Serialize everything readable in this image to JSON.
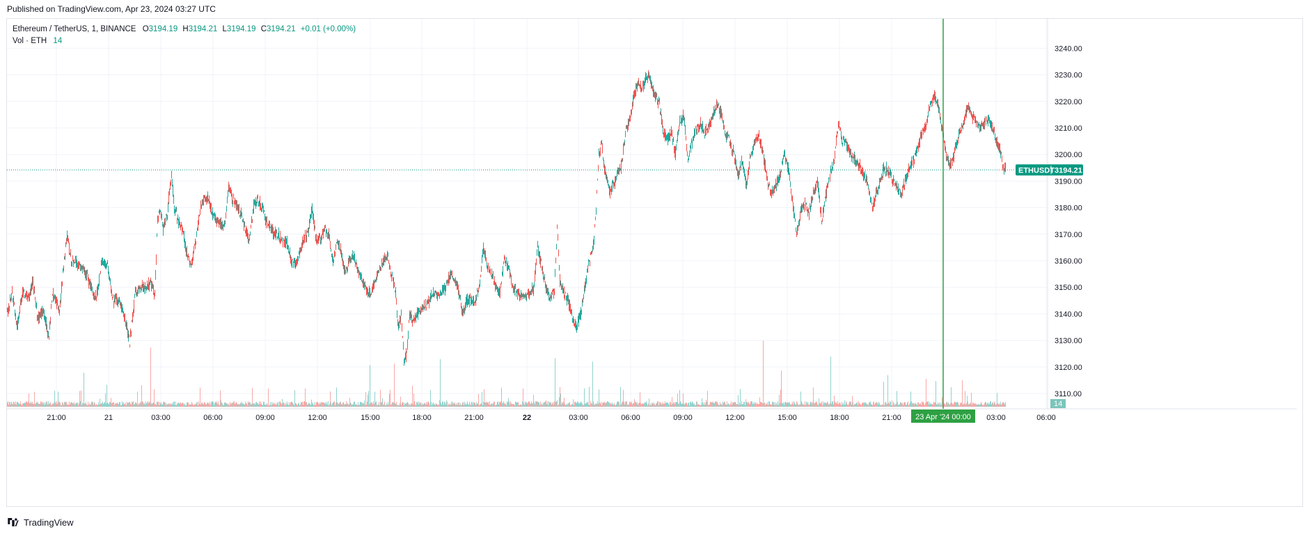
{
  "header": {
    "published": "Published on TradingView.com, Apr 23, 2024 03:27 UTC"
  },
  "legend": {
    "symbol": "Ethereum / TetherUS, 1, BINANCE",
    "o_label": "O",
    "o_value": "3194.19",
    "h_label": "H",
    "h_value": "3194.21",
    "l_label": "L",
    "l_value": "3194.19",
    "c_label": "C",
    "c_value": "3194.21",
    "change": "+0.01 (+0.00%)",
    "vol_label": "Vol · ETH",
    "vol_value": "14"
  },
  "price_tag": {
    "symbol": "ETHUSDT",
    "price": "3194.21"
  },
  "volume_tag": "14",
  "crosshair_label": "23 Apr '24   00:00",
  "footer": {
    "brand": "TradingView"
  },
  "colors": {
    "up": "#26a69a",
    "down": "#ef5350",
    "crosshair": "#2ea043",
    "price_line": "#089981"
  },
  "chart_data": {
    "type": "candlestick",
    "interval": "1 minute",
    "y_axis_ticks": [
      "3110.00",
      "3120.00",
      "3130.00",
      "3140.00",
      "3150.00",
      "3160.00",
      "3170.00",
      "3180.00",
      "3190.00",
      "3200.00",
      "3210.00",
      "3220.00",
      "3230.00",
      "3240.00"
    ],
    "ylim": [
      3103.7,
      3250.6
    ],
    "x_axis_ticks": [
      "21:00",
      "21",
      "03:00",
      "06:00",
      "09:00",
      "12:00",
      "15:00",
      "18:00",
      "21:00",
      "22",
      "03:00",
      "06:00",
      "09:00",
      "12:00",
      "15:00",
      "18:00",
      "21:00",
      "03:00",
      "06:00"
    ],
    "x_axis_ticks_bold": [
      "22"
    ],
    "current_price": 3194.21,
    "crosshair_time": "23 Apr '24 00:00",
    "grid": true,
    "price_path": [
      [
        0,
        3140
      ],
      [
        7,
        3148
      ],
      [
        14,
        3135
      ],
      [
        22,
        3148
      ],
      [
        30,
        3146
      ],
      [
        37,
        3152
      ],
      [
        44,
        3138
      ],
      [
        52,
        3142
      ],
      [
        60,
        3131
      ],
      [
        65,
        3148
      ],
      [
        70,
        3145
      ],
      [
        75,
        3140
      ],
      [
        80,
        3155
      ],
      [
        86,
        3170
      ],
      [
        92,
        3160
      ],
      [
        98,
        3160
      ],
      [
        106,
        3157
      ],
      [
        114,
        3155
      ],
      [
        122,
        3148
      ],
      [
        128,
        3146
      ],
      [
        136,
        3160
      ],
      [
        144,
        3158
      ],
      [
        152,
        3145
      ],
      [
        160,
        3145
      ],
      [
        168,
        3140
      ],
      [
        176,
        3129
      ],
      [
        184,
        3148
      ],
      [
        192,
        3150
      ],
      [
        200,
        3150
      ],
      [
        206,
        3152
      ],
      [
        212,
        3147
      ],
      [
        216,
        3175
      ],
      [
        220,
        3180
      ],
      [
        224,
        3172
      ],
      [
        230,
        3178
      ],
      [
        236,
        3193
      ],
      [
        240,
        3180
      ],
      [
        246,
        3175
      ],
      [
        252,
        3172
      ],
      [
        258,
        3163
      ],
      [
        264,
        3158
      ],
      [
        270,
        3166
      ],
      [
        276,
        3178
      ],
      [
        282,
        3183
      ],
      [
        288,
        3184
      ],
      [
        294,
        3178
      ],
      [
        300,
        3175
      ],
      [
        306,
        3174
      ],
      [
        312,
        3173
      ],
      [
        318,
        3188
      ],
      [
        324,
        3183
      ],
      [
        330,
        3180
      ],
      [
        336,
        3177
      ],
      [
        342,
        3172
      ],
      [
        348,
        3168
      ],
      [
        354,
        3180
      ],
      [
        360,
        3183
      ],
      [
        366,
        3180
      ],
      [
        372,
        3175
      ],
      [
        378,
        3173
      ],
      [
        384,
        3170
      ],
      [
        390,
        3170
      ],
      [
        396,
        3167
      ],
      [
        402,
        3167
      ],
      [
        408,
        3160
      ],
      [
        414,
        3159
      ],
      [
        420,
        3163
      ],
      [
        426,
        3168
      ],
      [
        432,
        3170
      ],
      [
        438,
        3180
      ],
      [
        444,
        3168
      ],
      [
        450,
        3168
      ],
      [
        456,
        3172
      ],
      [
        462,
        3170
      ],
      [
        468,
        3160
      ],
      [
        474,
        3167
      ],
      [
        480,
        3163
      ],
      [
        486,
        3155
      ],
      [
        492,
        3160
      ],
      [
        498,
        3162
      ],
      [
        504,
        3155
      ],
      [
        510,
        3153
      ],
      [
        516,
        3149
      ],
      [
        522,
        3148
      ],
      [
        528,
        3152
      ],
      [
        534,
        3157
      ],
      [
        540,
        3160
      ],
      [
        546,
        3162
      ],
      [
        552,
        3155
      ],
      [
        558,
        3148
      ],
      [
        562,
        3135
      ],
      [
        566,
        3140
      ],
      [
        570,
        3122
      ],
      [
        574,
        3125
      ],
      [
        578,
        3140
      ],
      [
        582,
        3138
      ],
      [
        588,
        3140
      ],
      [
        594,
        3142
      ],
      [
        600,
        3143
      ],
      [
        606,
        3145
      ],
      [
        612,
        3148
      ],
      [
        618,
        3147
      ],
      [
        624,
        3148
      ],
      [
        630,
        3150
      ],
      [
        636,
        3155
      ],
      [
        642,
        3153
      ],
      [
        648,
        3150
      ],
      [
        654,
        3140
      ],
      [
        660,
        3145
      ],
      [
        666,
        3145
      ],
      [
        672,
        3145
      ],
      [
        678,
        3150
      ],
      [
        684,
        3165
      ],
      [
        690,
        3158
      ],
      [
        696,
        3155
      ],
      [
        702,
        3150
      ],
      [
        708,
        3148
      ],
      [
        714,
        3160
      ],
      [
        720,
        3158
      ],
      [
        726,
        3150
      ],
      [
        732,
        3148
      ],
      [
        738,
        3147
      ],
      [
        744,
        3146
      ],
      [
        750,
        3148
      ],
      [
        756,
        3149
      ],
      [
        762,
        3165
      ],
      [
        768,
        3158
      ],
      [
        774,
        3150
      ],
      [
        780,
        3145
      ],
      [
        786,
        3149
      ],
      [
        790,
        3172
      ],
      [
        794,
        3152
      ],
      [
        800,
        3148
      ],
      [
        806,
        3145
      ],
      [
        812,
        3138
      ],
      [
        818,
        3135
      ],
      [
        824,
        3140
      ],
      [
        830,
        3150
      ],
      [
        836,
        3160
      ],
      [
        842,
        3165
      ],
      [
        846,
        3180
      ],
      [
        850,
        3200
      ],
      [
        854,
        3205
      ],
      [
        858,
        3195
      ],
      [
        862,
        3190
      ],
      [
        866,
        3186
      ],
      [
        870,
        3188
      ],
      [
        876,
        3192
      ],
      [
        882,
        3195
      ],
      [
        888,
        3208
      ],
      [
        894,
        3212
      ],
      [
        900,
        3222
      ],
      [
        906,
        3227
      ],
      [
        912,
        3224
      ],
      [
        918,
        3230
      ],
      [
        924,
        3228
      ],
      [
        930,
        3222
      ],
      [
        936,
        3220
      ],
      [
        942,
        3210
      ],
      [
        948,
        3205
      ],
      [
        954,
        3208
      ],
      [
        960,
        3200
      ],
      [
        966,
        3213
      ],
      [
        972,
        3215
      ],
      [
        978,
        3198
      ],
      [
        984,
        3205
      ],
      [
        990,
        3210
      ],
      [
        996,
        3212
      ],
      [
        1002,
        3208
      ],
      [
        1008,
        3210
      ],
      [
        1014,
        3215
      ],
      [
        1020,
        3219
      ],
      [
        1026,
        3215
      ],
      [
        1032,
        3208
      ],
      [
        1038,
        3205
      ],
      [
        1044,
        3200
      ],
      [
        1050,
        3192
      ],
      [
        1056,
        3198
      ],
      [
        1062,
        3188
      ],
      [
        1068,
        3200
      ],
      [
        1074,
        3205
      ],
      [
        1080,
        3207
      ],
      [
        1086,
        3200
      ],
      [
        1092,
        3190
      ],
      [
        1098,
        3185
      ],
      [
        1104,
        3188
      ],
      [
        1110,
        3192
      ],
      [
        1116,
        3200
      ],
      [
        1122,
        3195
      ],
      [
        1128,
        3182
      ],
      [
        1134,
        3170
      ],
      [
        1140,
        3178
      ],
      [
        1146,
        3182
      ],
      [
        1152,
        3178
      ],
      [
        1158,
        3185
      ],
      [
        1164,
        3190
      ],
      [
        1170,
        3175
      ],
      [
        1176,
        3185
      ],
      [
        1182,
        3192
      ],
      [
        1188,
        3198
      ],
      [
        1194,
        3212
      ],
      [
        1200,
        3205
      ],
      [
        1206,
        3203
      ],
      [
        1212,
        3200
      ],
      [
        1218,
        3198
      ],
      [
        1224,
        3196
      ],
      [
        1230,
        3192
      ],
      [
        1236,
        3190
      ],
      [
        1242,
        3180
      ],
      [
        1248,
        3185
      ],
      [
        1254,
        3190
      ],
      [
        1260,
        3195
      ],
      [
        1266,
        3194
      ],
      [
        1272,
        3190
      ],
      [
        1278,
        3188
      ],
      [
        1284,
        3185
      ],
      [
        1290,
        3190
      ],
      [
        1296,
        3195
      ],
      [
        1302,
        3198
      ],
      [
        1308,
        3202
      ],
      [
        1314,
        3208
      ],
      [
        1320,
        3210
      ],
      [
        1326,
        3220
      ],
      [
        1332,
        3222
      ],
      [
        1338,
        3218
      ],
      [
        1344,
        3208
      ],
      [
        1350,
        3198
      ],
      [
        1356,
        3196
      ],
      [
        1362,
        3202
      ],
      [
        1368,
        3208
      ],
      [
        1374,
        3212
      ],
      [
        1380,
        3218
      ],
      [
        1386,
        3215
      ],
      [
        1392,
        3212
      ],
      [
        1398,
        3210
      ],
      [
        1404,
        3212
      ],
      [
        1410,
        3214
      ],
      [
        1416,
        3210
      ],
      [
        1422,
        3205
      ],
      [
        1428,
        3200
      ],
      [
        1432,
        3194
      ],
      [
        1436,
        3197
      ],
      [
        1440,
        3195
      ],
      [
        1444,
        3194.21
      ]
    ]
  }
}
